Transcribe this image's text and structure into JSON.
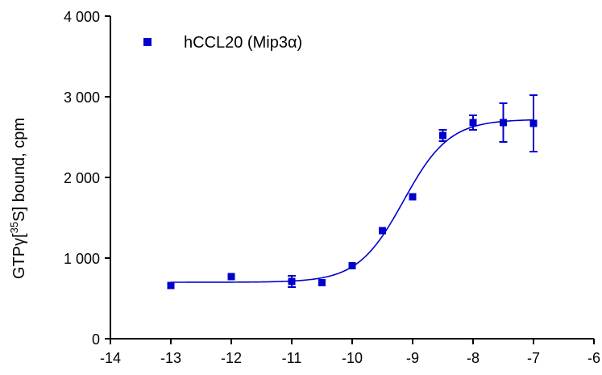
{
  "chart_data": {
    "type": "scatter",
    "title": "",
    "xlabel": "",
    "ylabel_parts": {
      "before": "GTPγ[",
      "superscript": "35",
      "after": "S] bound, cpm"
    },
    "xlim": [
      -14,
      -6
    ],
    "ylim": [
      0,
      4000
    ],
    "x_ticks": [
      -14,
      -13,
      -12,
      -11,
      -10,
      -9,
      -8,
      -7,
      -6
    ],
    "x_tick_labels": [
      "-14",
      "-13",
      "-12",
      "-11",
      "-10",
      "-9",
      "-8",
      "-7",
      "-6"
    ],
    "y_ticks": [
      0,
      1000,
      2000,
      3000,
      4000
    ],
    "y_tick_labels": [
      "0",
      "1 000",
      "2 000",
      "3 000",
      "4 000"
    ],
    "grid": false,
    "legend_position": "top-left",
    "series": [
      {
        "name": "hCCL20 (Mip3α)",
        "color": "#0000cc",
        "marker": "square",
        "points": [
          {
            "x": -13.0,
            "y": 660,
            "err": 0
          },
          {
            "x": -12.0,
            "y": 770,
            "err": 0
          },
          {
            "x": -11.0,
            "y": 710,
            "err": 70
          },
          {
            "x": -10.5,
            "y": 695,
            "err": 0
          },
          {
            "x": -10.0,
            "y": 905,
            "err": 0
          },
          {
            "x": -9.5,
            "y": 1340,
            "err": 0
          },
          {
            "x": -9.0,
            "y": 1760,
            "err": 0
          },
          {
            "x": -8.5,
            "y": 2520,
            "err": 70
          },
          {
            "x": -8.0,
            "y": 2680,
            "err": 90
          },
          {
            "x": -7.5,
            "y": 2680,
            "err": 240
          },
          {
            "x": -7.0,
            "y": 2670,
            "err": 350
          }
        ],
        "fit": {
          "model": "sigmoidal dose-response",
          "bottom": 700,
          "top": 2720,
          "logEC50": -9.15,
          "hill": 1.15,
          "x_range": [
            -13,
            -7
          ]
        }
      }
    ]
  }
}
